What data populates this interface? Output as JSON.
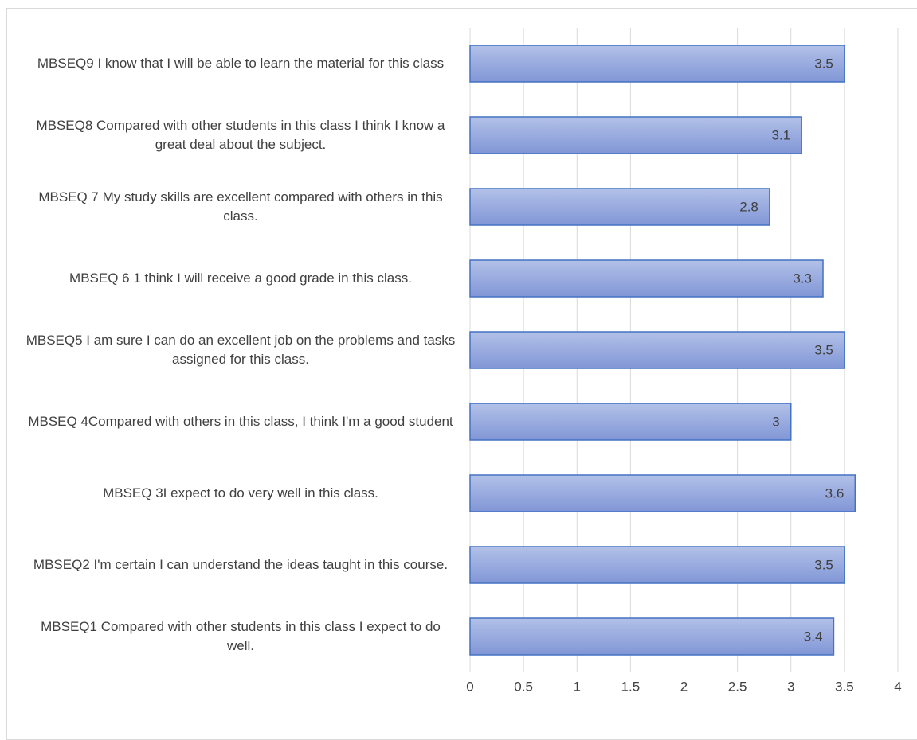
{
  "chart_data": {
    "type": "barh",
    "categories": [
      "MBSEQ9 I know that I will be able to learn the material for this class",
      "MBSEQ8 Compared with other students in this class I think I know a great deal about the subject.",
      "MBSEQ 7 My study skills are excellent compared with others in this class.",
      "MBSEQ 6 1 think I will receive a good grade in this class.",
      "MBSEQ5 I am sure I can do an excellent job on the problems and tasks assigned for this class.",
      "MBSEQ 4Compared with others in this class, I think I'm a good student",
      "MBSEQ 3I expect to do very well in this class.",
      "MBSEQ2 I'm certain I can understand the ideas taught in this course.",
      "MBSEQ1 Compared with other students in this class I expect to do well."
    ],
    "values": [
      3.5,
      3.1,
      2.8,
      3.3,
      3.5,
      3,
      3.6,
      3.5,
      3.4
    ],
    "color": "#4472c4",
    "xlim": [
      0,
      4
    ],
    "xticks": [
      0,
      0.5,
      1,
      1.5,
      2,
      2.5,
      3,
      3.5,
      4
    ],
    "grid": true
  }
}
